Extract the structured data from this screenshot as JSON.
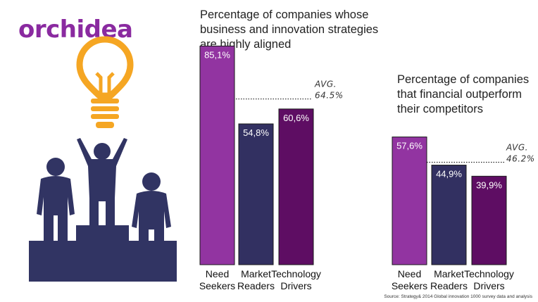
{
  "brand": {
    "logo_text": "orchidea",
    "logo_color": "#8a2aa0"
  },
  "illustration": {
    "bulb_icon": "lightbulb-icon",
    "people_icon": "podium-people-icon",
    "bulb_color": "#f5a623",
    "figure_color": "#313463"
  },
  "colors": {
    "need_seekers": "#9234a1",
    "market_readers": "#323061",
    "technology_drivers": "#5e0d63",
    "bar_border": "#1a1a1a"
  },
  "chart_data": [
    {
      "type": "bar",
      "title": "Percentage of companies whose\nbusiness and innovation strategies\nare highly aligned",
      "categories": [
        [
          "Need",
          "Seekers"
        ],
        [
          "Market",
          "Readers"
        ],
        [
          "Technology",
          "Drivers"
        ]
      ],
      "values": [
        85.1,
        54.8,
        60.6
      ],
      "value_labels": [
        "85,1%",
        "54,8%",
        "60,6%"
      ],
      "average": {
        "value": 64.5,
        "label_line1": "AVG.",
        "label_line2": "64.5%"
      },
      "ylim": [
        0,
        100
      ]
    },
    {
      "type": "bar",
      "title": "Percentage of companies\nthat financial outperform\ntheir competitors",
      "categories": [
        [
          "Need",
          "Seekers"
        ],
        [
          "Market",
          "Readers"
        ],
        [
          "Technology",
          "Drivers"
        ]
      ],
      "values": [
        57.6,
        44.9,
        39.9
      ],
      "value_labels": [
        "57,6%",
        "44,9%",
        "39,9%"
      ],
      "average": {
        "value": 46.2,
        "label_line1": "AVG.",
        "label_line2": "46.2%"
      },
      "ylim": [
        0,
        100
      ]
    }
  ],
  "footer": {
    "source": "Source: Strategy& 2014 Global innovation 1000 survey data and analysis"
  }
}
